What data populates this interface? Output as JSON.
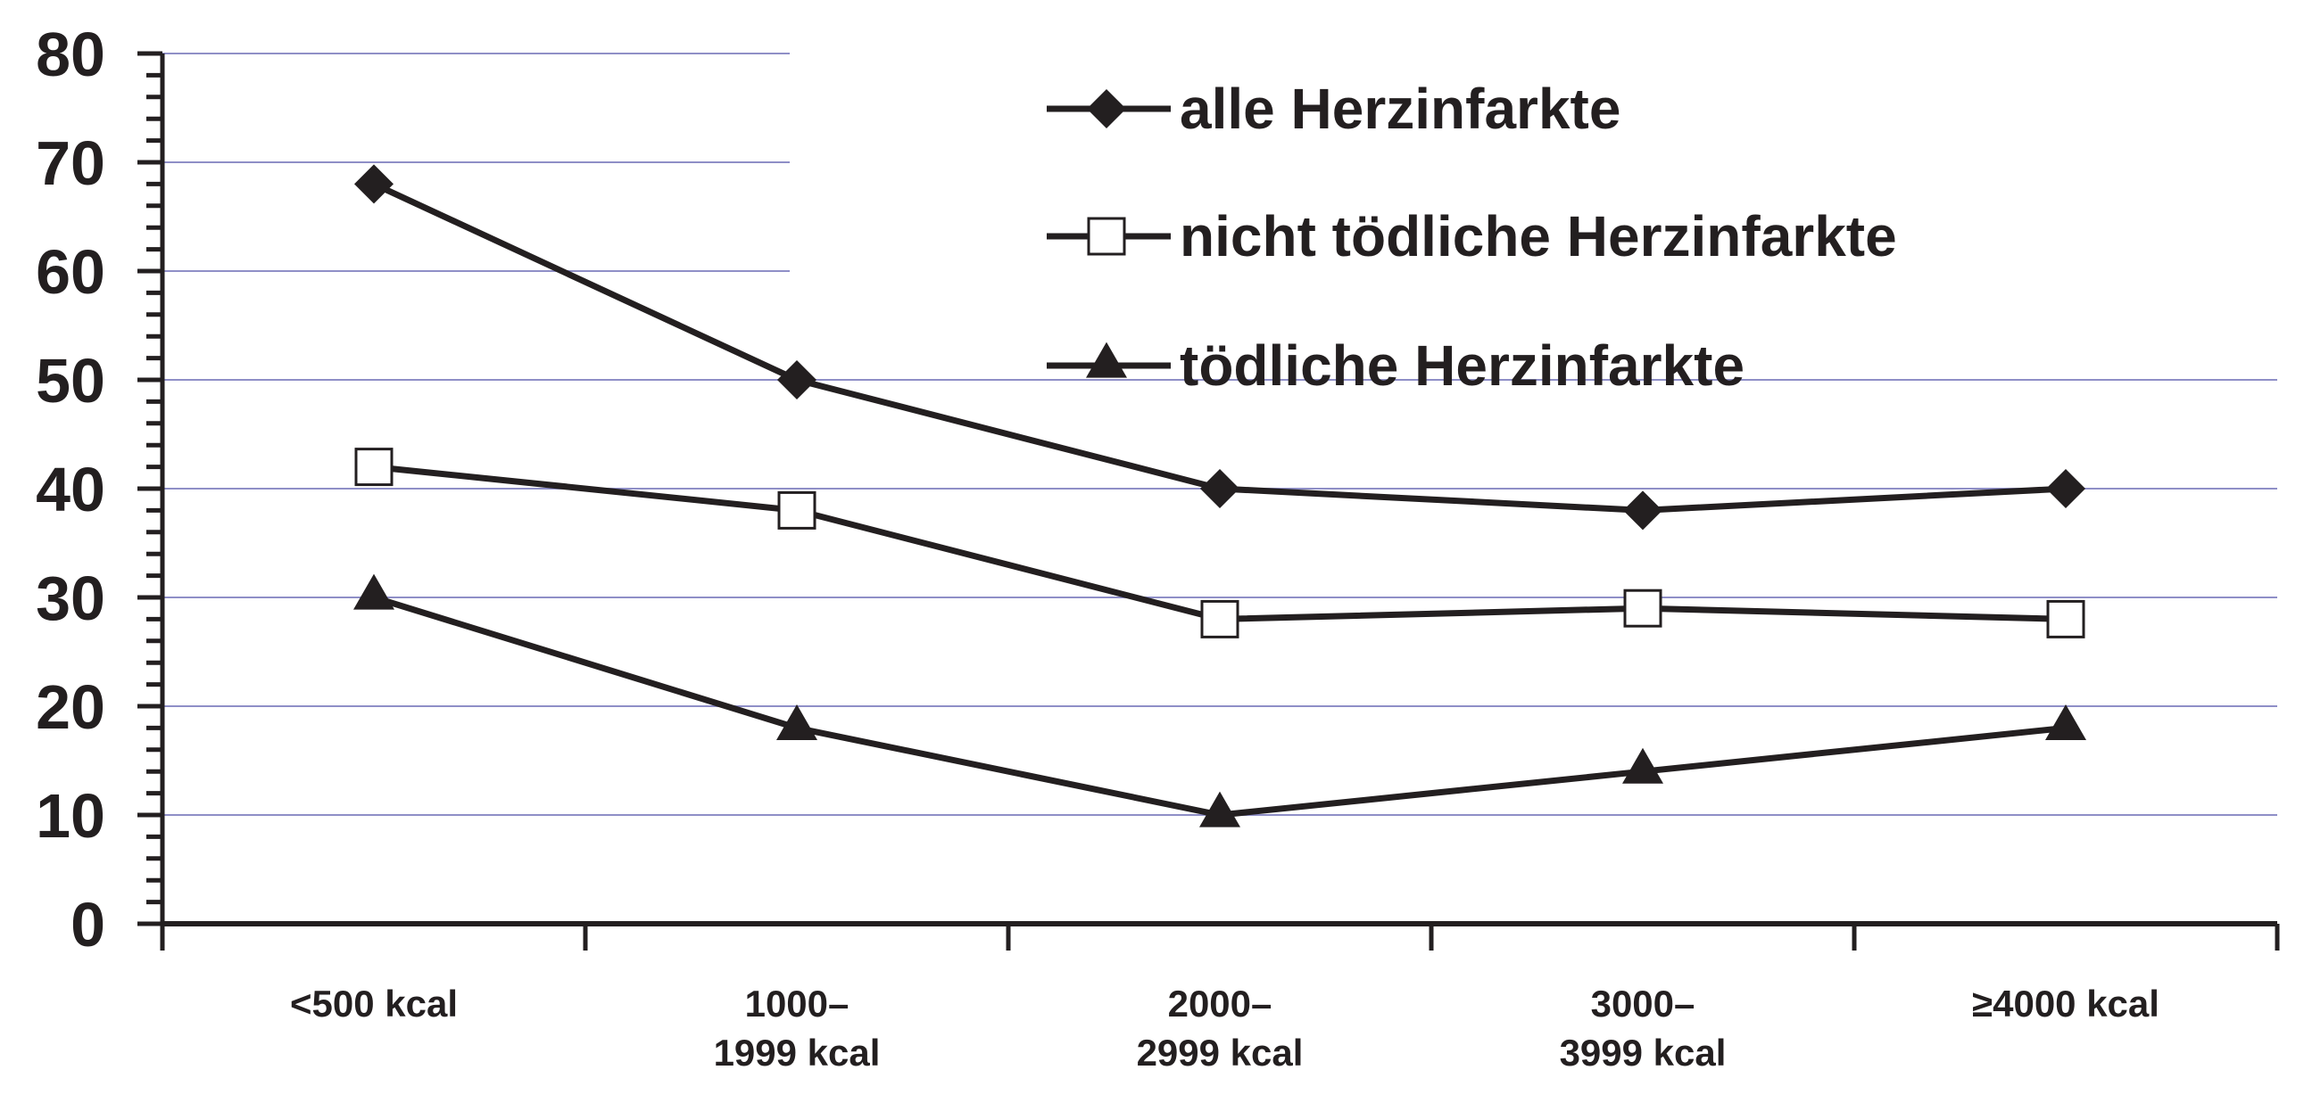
{
  "chart_data": {
    "type": "line",
    "title": "",
    "xlabel": "",
    "ylabel": "",
    "categories": [
      [
        "<500 kcal"
      ],
      [
        "1000–",
        "1999 kcal"
      ],
      [
        "2000–",
        "2999 kcal"
      ],
      [
        "3000–",
        "3999 kcal"
      ],
      [
        "≥4000 kcal"
      ]
    ],
    "y_ticks": [
      "0",
      "10",
      "20",
      "30",
      "40",
      "50",
      "60",
      "70",
      "80"
    ],
    "ylim": [
      0,
      80
    ],
    "grid": true,
    "legend_position": "top-right",
    "series": [
      {
        "name": "alle Herzinfarkte",
        "marker": "diamond-filled",
        "values": [
          68,
          50,
          40,
          38,
          40
        ]
      },
      {
        "name": "nicht tödliche Herzinfarkte",
        "marker": "square-open",
        "values": [
          42,
          38,
          28,
          29,
          28
        ]
      },
      {
        "name": "tödliche Herzinfarkte",
        "marker": "triangle-filled",
        "values": [
          30,
          18,
          10,
          14,
          18
        ]
      }
    ],
    "colors": {
      "line": "#231f20",
      "grid": "#8f8fc7",
      "marker_open_fill": "#ffffff"
    }
  }
}
